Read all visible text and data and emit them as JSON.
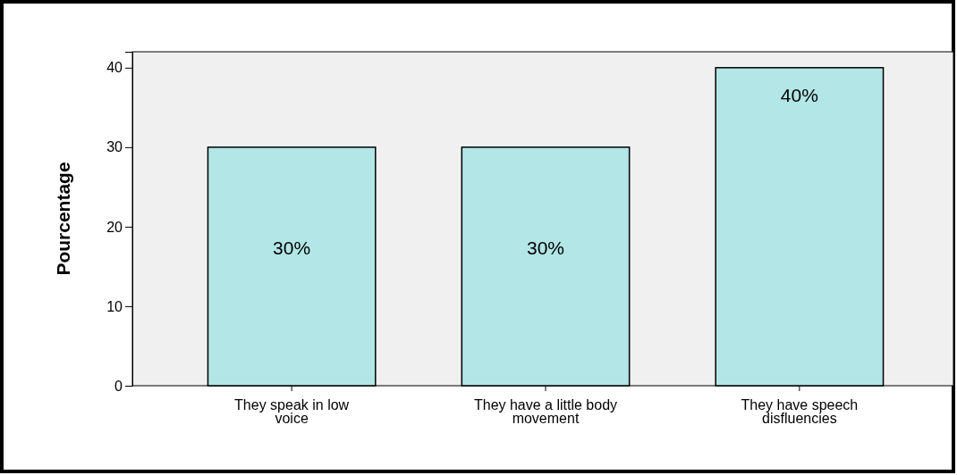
{
  "chart_data": {
    "type": "bar",
    "ylabel": "Pourcentage",
    "categories": [
      "They speak in low voice",
      "They have a little body movement",
      "They have speech disfluencies"
    ],
    "values": [
      30,
      30,
      40
    ],
    "color": "#b3e6e6",
    "value_labels": [
      "30%",
      "30%",
      "40%"
    ],
    "ylim": [
      0,
      42
    ],
    "yticks": [
      0,
      10,
      20,
      30,
      40
    ],
    "grid": false
  }
}
